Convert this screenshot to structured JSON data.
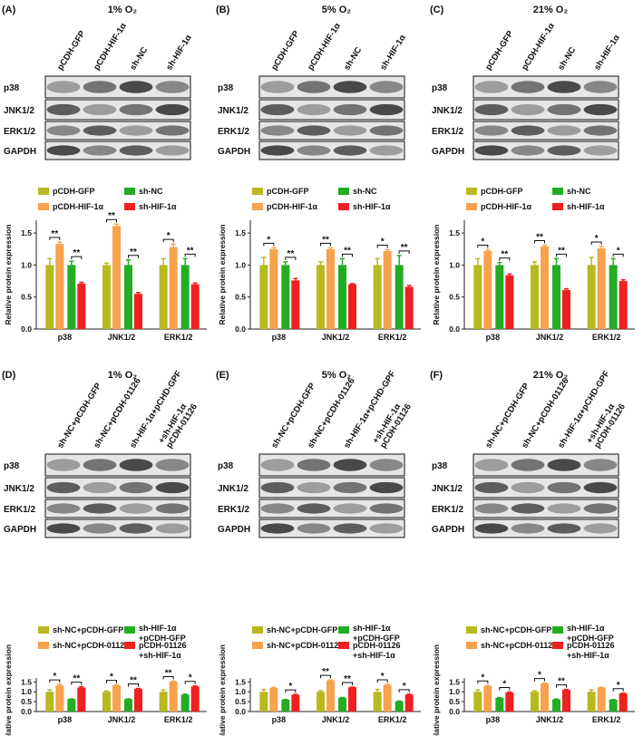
{
  "chart_data": [
    {
      "type": "bar",
      "panel": "(A)",
      "title": "1% O₂",
      "y_label": "Relative protein expression",
      "blot": {
        "lanes": [
          "pCDH-GFP",
          "pCDH-HIF-1α",
          "sh-NC",
          "sh-HIF-1α"
        ],
        "rows": [
          "p38",
          "JNK1/2",
          "ERK1/2",
          "GAPDH"
        ]
      },
      "categories": [
        "p38",
        "JNK1/2",
        "ERK1/2"
      ],
      "series": [
        {
          "name": "pCDH-GFP",
          "color": "#b8b91f",
          "values": [
            1.0,
            1.0,
            1.0
          ],
          "errors": [
            0.1,
            0.03,
            0.1
          ]
        },
        {
          "name": "pCDH-HIF-1α",
          "color": "#f7a24d",
          "values": [
            1.33,
            1.61,
            1.28
          ],
          "errors": [
            0.03,
            0.03,
            0.05
          ]
        },
        {
          "name": "sh-NC",
          "color": "#22ad22",
          "values": [
            1.0,
            1.0,
            1.0
          ],
          "errors": [
            0.06,
            0.08,
            0.1
          ]
        },
        {
          "name": "sh-HIF-1α",
          "color": "#ee2020",
          "values": [
            0.71,
            0.55,
            0.7
          ],
          "errors": [
            0.02,
            0.02,
            0.02
          ]
        }
      ],
      "annotations": [
        [
          "**",
          "**"
        ],
        [
          "**",
          "**"
        ],
        [
          "*",
          "**"
        ]
      ],
      "ylim": [
        0,
        1.7
      ],
      "yticks": [
        {
          "value": 0,
          "label": "0.0"
        },
        0.5,
        {
          "value": 1,
          "label": "1.0"
        },
        1.5
      ]
    },
    {
      "type": "bar",
      "panel": "(B)",
      "title": "5% O₂",
      "y_label": "Relative protein expression",
      "blot": {
        "lanes": [
          "pCDH-GFP",
          "pCDH-HIF-1α",
          "sh-NC",
          "sh-HIF-1α"
        ],
        "rows": [
          "p38",
          "JNK1/2",
          "ERK1/2",
          "GAPDH"
        ]
      },
      "categories": [
        "p38",
        "JNK1/2",
        "ERK1/2"
      ],
      "series": [
        {
          "name": "pCDH-GFP",
          "color": "#b8b91f",
          "values": [
            1.0,
            1.0,
            1.0
          ],
          "errors": [
            0.12,
            0.05,
            0.1
          ]
        },
        {
          "name": "pCDH-HIF-1α",
          "color": "#f7a24d",
          "values": [
            1.25,
            1.25,
            1.22
          ],
          "errors": [
            0.02,
            0.02,
            0.02
          ]
        },
        {
          "name": "sh-NC",
          "color": "#22ad22",
          "values": [
            1.0,
            1.0,
            1.0
          ],
          "errors": [
            0.05,
            0.1,
            0.15
          ]
        },
        {
          "name": "sh-HIF-1α",
          "color": "#ee2020",
          "values": [
            0.76,
            0.7,
            0.66
          ],
          "errors": [
            0.03,
            0.01,
            0.02
          ]
        }
      ],
      "annotations": [
        [
          "*",
          "**"
        ],
        [
          "**",
          "**"
        ],
        [
          "*",
          "**"
        ]
      ],
      "ylim": [
        0,
        1.7
      ],
      "yticks": [
        {
          "value": 0,
          "label": "0.0"
        },
        0.5,
        {
          "value": 1,
          "label": "1.0"
        },
        1.5
      ]
    },
    {
      "type": "bar",
      "panel": "(C)",
      "title": "21% O₂",
      "y_label": "Relative protein expression",
      "blot": {
        "lanes": [
          "pCDH-GFP",
          "pCDH-HIF-1α",
          "sh-NC",
          "sh-HIF-1α"
        ],
        "rows": [
          "p38",
          "JNK1/2",
          "ERK1/2",
          "GAPDH"
        ]
      },
      "categories": [
        "p38",
        "JNK1/2",
        "ERK1/2"
      ],
      "series": [
        {
          "name": "pCDH-GFP",
          "color": "#b8b91f",
          "values": [
            1.0,
            1.0,
            1.0
          ],
          "errors": [
            0.1,
            0.05,
            0.12
          ]
        },
        {
          "name": "pCDH-HIF-1α",
          "color": "#f7a24d",
          "values": [
            1.22,
            1.29,
            1.26
          ],
          "errors": [
            0.02,
            0.02,
            0.03
          ]
        },
        {
          "name": "sh-NC",
          "color": "#22ad22",
          "values": [
            1.0,
            1.0,
            1.0
          ],
          "errors": [
            0.04,
            0.1,
            0.1
          ]
        },
        {
          "name": "sh-HIF-1α",
          "color": "#ee2020",
          "values": [
            0.84,
            0.61,
            0.75
          ],
          "errors": [
            0.02,
            0.02,
            0.02
          ]
        }
      ],
      "annotations": [
        [
          "*",
          "**"
        ],
        [
          "**",
          "**"
        ],
        [
          "*",
          "*"
        ]
      ],
      "ylim": [
        0,
        1.7
      ],
      "yticks": [
        {
          "value": 0,
          "label": "0.0"
        },
        0.5,
        {
          "value": 1,
          "label": "1.0"
        },
        1.5
      ]
    },
    {
      "type": "bar",
      "panel": "(D)",
      "title": "1% O₂",
      "y_label": "Relative protein expression",
      "blot": {
        "lanes": [
          "sh-NC+pCDH-GFP",
          "sh-NC+pCDH-01126",
          "sh-HIF-1α+pCHD-GPF",
          "pCDH-01126 +sh-HIF-1α"
        ],
        "rows": [
          "p38",
          "JNK1/2",
          "ERK1/2",
          "GAPDH"
        ]
      },
      "categories": [
        "p38",
        "JNK1/2",
        "ERK1/2"
      ],
      "series": [
        {
          "name": "sh-NC+pCDH-GFP",
          "color": "#b8b91f",
          "values": [
            1.0,
            1.0,
            1.0
          ],
          "errors": [
            0.1,
            0.04,
            0.1
          ]
        },
        {
          "name": "sh-NC+pCDH-01126",
          "color": "#f7a24d",
          "values": [
            1.32,
            1.33,
            1.52
          ],
          "errors": [
            0.05,
            0.02,
            0.02
          ]
        },
        {
          "name": "sh-HIF-1α +pCDH-GFP",
          "color": "#22ad22",
          "values": [
            0.63,
            0.63,
            0.86
          ],
          "errors": [
            0.01,
            0.01,
            0.02
          ]
        },
        {
          "name": "pCDH-01126 +sh-HIF-1α",
          "color": "#ee2020",
          "values": [
            1.22,
            1.15,
            1.27
          ],
          "errors": [
            0.04,
            0.02,
            0.03
          ]
        }
      ],
      "annotations": [
        [
          "*",
          "**"
        ],
        [
          "*",
          "**"
        ],
        [
          "**",
          "*"
        ]
      ],
      "ylim": [
        0,
        1.7
      ],
      "yticks": [
        {
          "value": 0,
          "label": "0.0"
        },
        0.5,
        {
          "value": 1,
          "label": "1.0"
        },
        1.5
      ]
    },
    {
      "type": "bar",
      "panel": "(E)",
      "title": "5% O₂",
      "y_label": "Relative protein expression",
      "blot": {
        "lanes": [
          "sh-NC+pCDH-GFP",
          "sh-NC+pCDH-01126",
          "sh-HIF-1α+pCHD-GPF",
          "pCDH-01126 +sh-HIF-1α"
        ],
        "rows": [
          "p38",
          "JNK1/2",
          "ERK1/2",
          "GAPDH"
        ]
      },
      "categories": [
        "p38",
        "JNK1/2",
        "ERK1/2"
      ],
      "series": [
        {
          "name": "sh-NC+pCDH-GFP",
          "color": "#b8b91f",
          "values": [
            1.0,
            1.0,
            1.0
          ],
          "errors": [
            0.12,
            0.05,
            0.12
          ]
        },
        {
          "name": "sh-NC+pCDH-01126",
          "color": "#f7a24d",
          "values": [
            1.2,
            1.58,
            1.35
          ],
          "errors": [
            0.02,
            0.02,
            0.03
          ]
        },
        {
          "name": "sh-HIF-1α +pCDH-GFP",
          "color": "#22ad22",
          "values": [
            0.6,
            0.7,
            0.52
          ],
          "errors": [
            0.01,
            0.01,
            0.01
          ]
        },
        {
          "name": "pCDH-01126 +sh-HIF-1α",
          "color": "#ee2020",
          "values": [
            0.85,
            1.23,
            0.86
          ],
          "errors": [
            0.02,
            0.01,
            0.02
          ]
        }
      ],
      "annotations": [
        [
          null,
          "*"
        ],
        [
          "**",
          "**"
        ],
        [
          "*",
          "*"
        ]
      ],
      "ylim": [
        0,
        1.7
      ],
      "yticks": [
        {
          "value": 0,
          "label": "0.0"
        },
        0.5,
        {
          "value": 1,
          "label": "1.0"
        },
        1.5
      ]
    },
    {
      "type": "bar",
      "panel": "(F)",
      "title": "21% O₂",
      "y_label": "Relative protein expression",
      "blot": {
        "lanes": [
          "sh-NC+pCDH-GFP",
          "sh-NC+pCDH-01126",
          "sh-HIF-1α+pCHD-GPF",
          "pCDH-01126 +sh-HIF-1α"
        ],
        "rows": [
          "p38",
          "JNK1/2",
          "ERK1/2",
          "GAPDH"
        ]
      },
      "categories": [
        "p38",
        "JNK1/2",
        "ERK1/2"
      ],
      "series": [
        {
          "name": "sh-NC+pCDH-GFP",
          "color": "#b8b91f",
          "values": [
            1.0,
            1.0,
            1.0
          ],
          "errors": [
            0.1,
            0.05,
            0.1
          ]
        },
        {
          "name": "sh-NC+pCDH-01126",
          "color": "#f7a24d",
          "values": [
            1.3,
            1.42,
            1.22
          ],
          "errors": [
            0.02,
            0.02,
            0.01
          ]
        },
        {
          "name": "sh-HIF-1α +pCDH-GFP",
          "color": "#22ad22",
          "values": [
            0.7,
            0.62,
            0.6
          ],
          "errors": [
            0.01,
            0.01,
            0.01
          ]
        },
        {
          "name": "pCDH-01126 +sh-HIF-1α",
          "color": "#ee2020",
          "values": [
            0.97,
            1.1,
            0.92
          ],
          "errors": [
            0.02,
            0.02,
            0.01
          ]
        }
      ],
      "annotations": [
        [
          "*",
          "*"
        ],
        [
          "*",
          "**"
        ],
        [
          null,
          "*"
        ]
      ],
      "ylim": [
        0,
        1.7
      ],
      "yticks": [
        {
          "value": 0,
          "label": "0.0"
        },
        0.5,
        {
          "value": 1,
          "label": "1.0"
        },
        1.5
      ]
    }
  ]
}
